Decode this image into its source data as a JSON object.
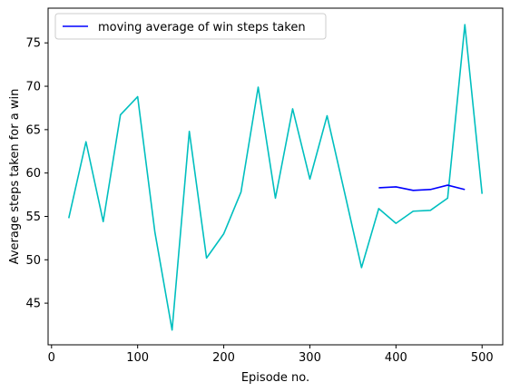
{
  "chart_data": {
    "type": "line",
    "title": "",
    "xlabel": "Episode no.",
    "ylabel": "Average steps taken for a win",
    "xlim": [
      -4,
      524
    ],
    "ylim": [
      40.2,
      79.0
    ],
    "xticks": [
      0,
      100,
      200,
      300,
      400,
      500
    ],
    "yticks": [
      45,
      50,
      55,
      60,
      65,
      70,
      75
    ],
    "grid": false,
    "legend_position": "top-left",
    "series": [
      {
        "name": "",
        "color": "#00bfbf",
        "x": [
          20,
          40,
          60,
          80,
          100,
          120,
          140,
          160,
          180,
          200,
          220,
          240,
          260,
          280,
          300,
          320,
          340,
          360,
          380,
          400,
          420,
          440,
          460,
          480,
          500
        ],
        "y": [
          54.8,
          63.6,
          54.4,
          66.7,
          68.8,
          53.2,
          41.9,
          64.8,
          50.2,
          53.0,
          57.8,
          69.9,
          57.1,
          67.4,
          59.3,
          66.6,
          57.9,
          49.1,
          55.9,
          54.2,
          55.6,
          55.7,
          57.1,
          77.1,
          57.6
        ]
      },
      {
        "name": "moving average of win steps taken",
        "color": "#0000ff",
        "x": [
          380,
          400,
          420,
          440,
          460,
          480
        ],
        "y": [
          58.3,
          58.4,
          58.0,
          58.1,
          58.6,
          58.1
        ]
      }
    ]
  }
}
